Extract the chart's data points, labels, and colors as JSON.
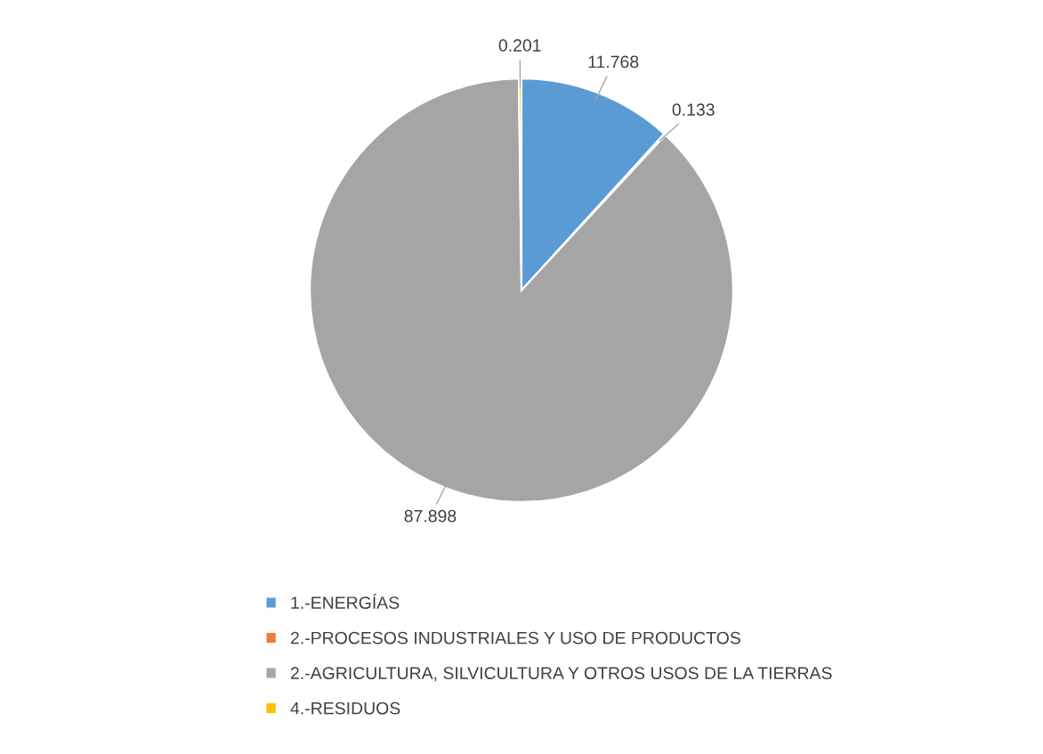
{
  "chart_data": {
    "type": "pie",
    "categories": [
      "1.-ENERGÍAS",
      "2.-PROCESOS INDUSTRIALES Y USO DE PRODUCTOS",
      "2.-AGRICULTURA, SILVICULTURA Y OTROS USOS DE LA TIERRAS",
      "4.-RESIDUOS"
    ],
    "values": [
      11.768,
      0.133,
      87.898,
      0.201
    ],
    "colors": [
      "#5b9bd5",
      "#ed7d31",
      "#a5a5a5",
      "#ffc000"
    ],
    "data_labels": true,
    "legend": "bottom"
  }
}
